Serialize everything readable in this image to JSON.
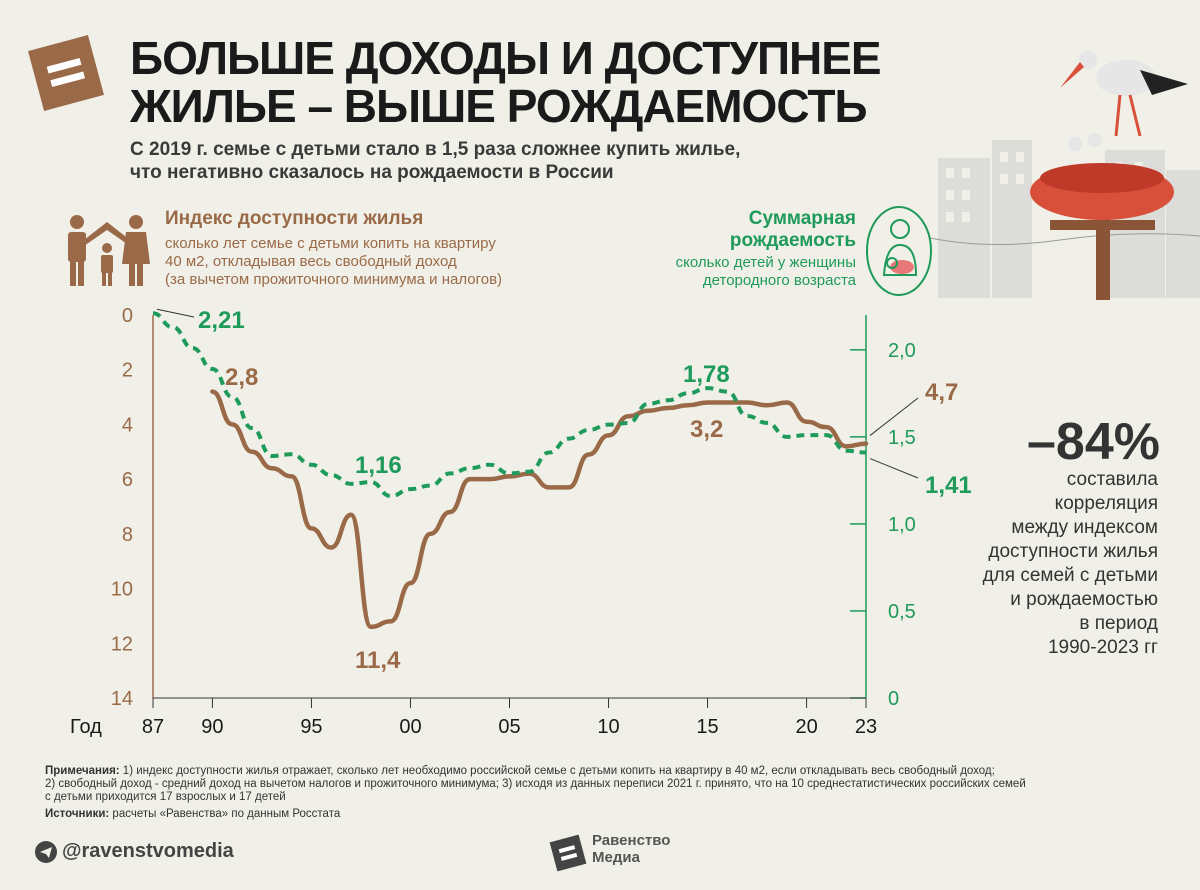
{
  "header": {
    "title_line1": "БОЛЬШЕ ДОХОДЫ И ДОСТУПНЕЕ",
    "title_line2": "ЖИЛЬЕ – ВЫШЕ РОЖДАЕМОСТЬ",
    "subtitle_line1": "С 2019 г. семье с детьми стало в 1,5 раза сложнее купить жилье,",
    "subtitle_line2": "что негативно сказалось на рождаемости в России"
  },
  "legend": {
    "index_title": "Индекс доступности жилья",
    "index_desc_1": "сколько лет семье с детьми копить на квартиру",
    "index_desc_2": "40 м2, откладывая весь свободный доход",
    "index_desc_3": "(за вычетом прожиточного минимума и налогов)",
    "fert_title_1": "Суммарная",
    "fert_title_2": "рождаемость",
    "fert_desc_1": "сколько детей у женщины",
    "fert_desc_2": "детородного возраста"
  },
  "correlation": {
    "value": "–84%",
    "text": [
      "составила",
      "корреляция",
      "между индексом",
      "доступности жилья",
      "для семей с детьми",
      "и рождаемостью",
      "в период",
      "1990-2023 гг"
    ]
  },
  "chart_data": {
    "type": "line",
    "xlabel": "Год",
    "x_ticks": [
      "87",
      "90",
      "95",
      "00",
      "05",
      "10",
      "15",
      "20",
      "23"
    ],
    "left_axis": {
      "ticks": [
        "0",
        "2",
        "4",
        "6",
        "8",
        "10",
        "12",
        "14"
      ],
      "range": [
        0,
        14
      ],
      "inverted": true
    },
    "right_axis": {
      "ticks": [
        "0",
        "0,5",
        "1,0",
        "1,5",
        "2,0"
      ],
      "range": [
        0,
        2.2
      ]
    },
    "series": [
      {
        "name": "Индекс доступности жилья",
        "color": "#9a6a48",
        "axis": "left",
        "style": "solid",
        "points": [
          [
            1990,
            2.8
          ],
          [
            1991,
            4.0
          ],
          [
            1992,
            5.0
          ],
          [
            1993,
            5.6
          ],
          [
            1994,
            5.9
          ],
          [
            1995,
            7.8
          ],
          [
            1996,
            8.5
          ],
          [
            1997,
            7.3
          ],
          [
            1998,
            11.4
          ],
          [
            1999,
            11.2
          ],
          [
            2000,
            9.8
          ],
          [
            2001,
            8.0
          ],
          [
            2002,
            7.2
          ],
          [
            2003,
            6.0
          ],
          [
            2004,
            6.0
          ],
          [
            2005,
            5.9
          ],
          [
            2006,
            5.8
          ],
          [
            2007,
            6.3
          ],
          [
            2008,
            6.3
          ],
          [
            2009,
            5.1
          ],
          [
            2010,
            4.4
          ],
          [
            2011,
            3.7
          ],
          [
            2012,
            3.5
          ],
          [
            2013,
            3.4
          ],
          [
            2014,
            3.3
          ],
          [
            2015,
            3.2
          ],
          [
            2016,
            3.2
          ],
          [
            2017,
            3.2
          ],
          [
            2018,
            3.3
          ],
          [
            2019,
            3.2
          ],
          [
            2020,
            3.9
          ],
          [
            2021,
            4.1
          ],
          [
            2022,
            4.8
          ],
          [
            2023,
            4.7
          ]
        ]
      },
      {
        "name": "Суммарная рождаемость",
        "color": "#1e9a5a",
        "axis": "right",
        "style": "dashed",
        "points": [
          [
            1987,
            2.21
          ],
          [
            1988,
            2.13
          ],
          [
            1989,
            2.01
          ],
          [
            1990,
            1.89
          ],
          [
            1991,
            1.73
          ],
          [
            1992,
            1.55
          ],
          [
            1993,
            1.39
          ],
          [
            1994,
            1.4
          ],
          [
            1995,
            1.34
          ],
          [
            1996,
            1.28
          ],
          [
            1997,
            1.23
          ],
          [
            1998,
            1.24
          ],
          [
            1999,
            1.16
          ],
          [
            2000,
            1.2
          ],
          [
            2001,
            1.22
          ],
          [
            2002,
            1.29
          ],
          [
            2003,
            1.32
          ],
          [
            2004,
            1.34
          ],
          [
            2005,
            1.29
          ],
          [
            2006,
            1.3
          ],
          [
            2007,
            1.41
          ],
          [
            2008,
            1.49
          ],
          [
            2009,
            1.54
          ],
          [
            2010,
            1.57
          ],
          [
            2011,
            1.58
          ],
          [
            2012,
            1.69
          ],
          [
            2013,
            1.71
          ],
          [
            2014,
            1.75
          ],
          [
            2015,
            1.78
          ],
          [
            2016,
            1.76
          ],
          [
            2017,
            1.62
          ],
          [
            2018,
            1.58
          ],
          [
            2019,
            1.5
          ],
          [
            2020,
            1.51
          ],
          [
            2021,
            1.51
          ],
          [
            2022,
            1.42
          ],
          [
            2023,
            1.41
          ]
        ]
      }
    ],
    "annotations": {
      "fert_start": "2,21",
      "idx_start": "2,8",
      "fert_min": "1,16",
      "idx_max": "11,4",
      "fert_peak": "1,78",
      "idx_min": "3,2",
      "idx_end": "4,7",
      "fert_end": "1,41"
    }
  },
  "footer": {
    "notes_label": "Примечания:",
    "notes_1": " 1) индекс доступности жилья отражает, сколько лет необходимо российской семье с детьми копить на квартиру в 40 м2, если откладывать весь свободный доход;",
    "notes_2": "2) свободный доход - средний доход на вычетом налогов и прожиточного минимума; 3) исходя из данных переписи 2021 г. принято, что на 10 среднестатистических российских семей",
    "notes_3": "с детьми приходится 17 взрослых и 17 детей",
    "sources_label": "Источники:",
    "sources": " расчеты «Равенства» по данным Росстата",
    "handle": "@ravenstvomedia",
    "brand_1": "Равенство",
    "brand_2": "Медиа"
  }
}
